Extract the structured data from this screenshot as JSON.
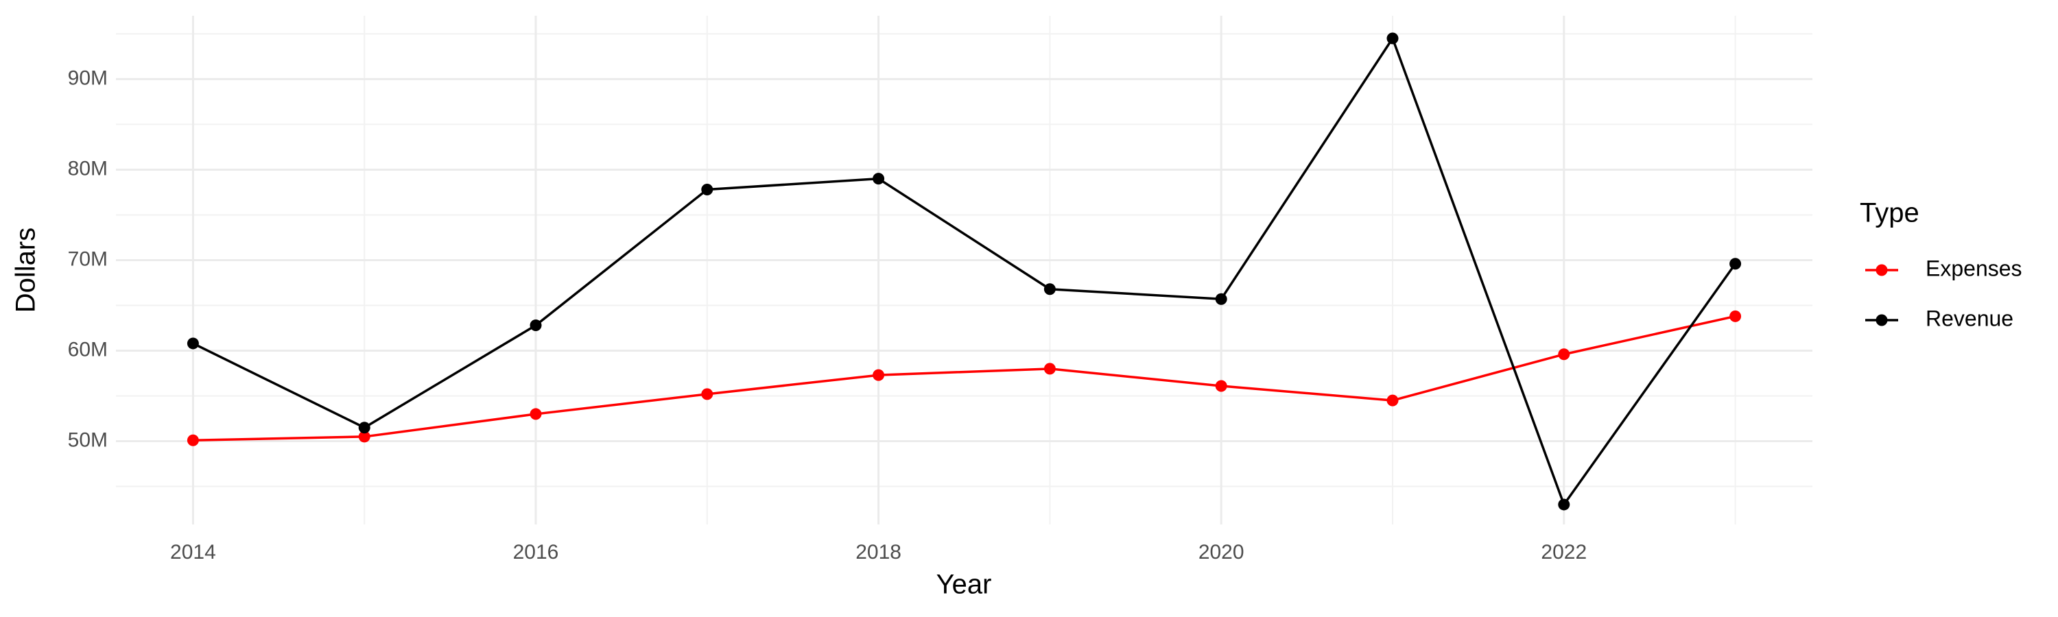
{
  "chart_data": {
    "type": "line",
    "x_label": "Year",
    "y_label": "Dollars",
    "x": [
      2014,
      2015,
      2016,
      2017,
      2018,
      2019,
      2020,
      2021,
      2022,
      2023
    ],
    "series": [
      {
        "name": "Expenses",
        "color": "#ff0000",
        "values": [
          50100000,
          50500000,
          53000000,
          55200000,
          57300000,
          58000000,
          56100000,
          54500000,
          59600000,
          63800000
        ]
      },
      {
        "name": "Revenue",
        "color": "#000000",
        "values": [
          60800000,
          51500000,
          62800000,
          77800000,
          79000000,
          66800000,
          65700000,
          94500000,
          43000000,
          69600000
        ]
      }
    ],
    "xlim": [
      2013.55,
      2023.45
    ],
    "xticks": [
      2014,
      2016,
      2018,
      2020,
      2022
    ],
    "ylim": [
      40800000,
      97000000
    ],
    "yticks": [
      {
        "value": 50000000,
        "label": "50M"
      },
      {
        "value": 60000000,
        "label": "60M"
      },
      {
        "value": 70000000,
        "label": "70M"
      },
      {
        "value": 80000000,
        "label": "80M"
      },
      {
        "value": 90000000,
        "label": "90M"
      }
    ],
    "grid": true,
    "legend_title": "Type",
    "legend_position": "right"
  }
}
